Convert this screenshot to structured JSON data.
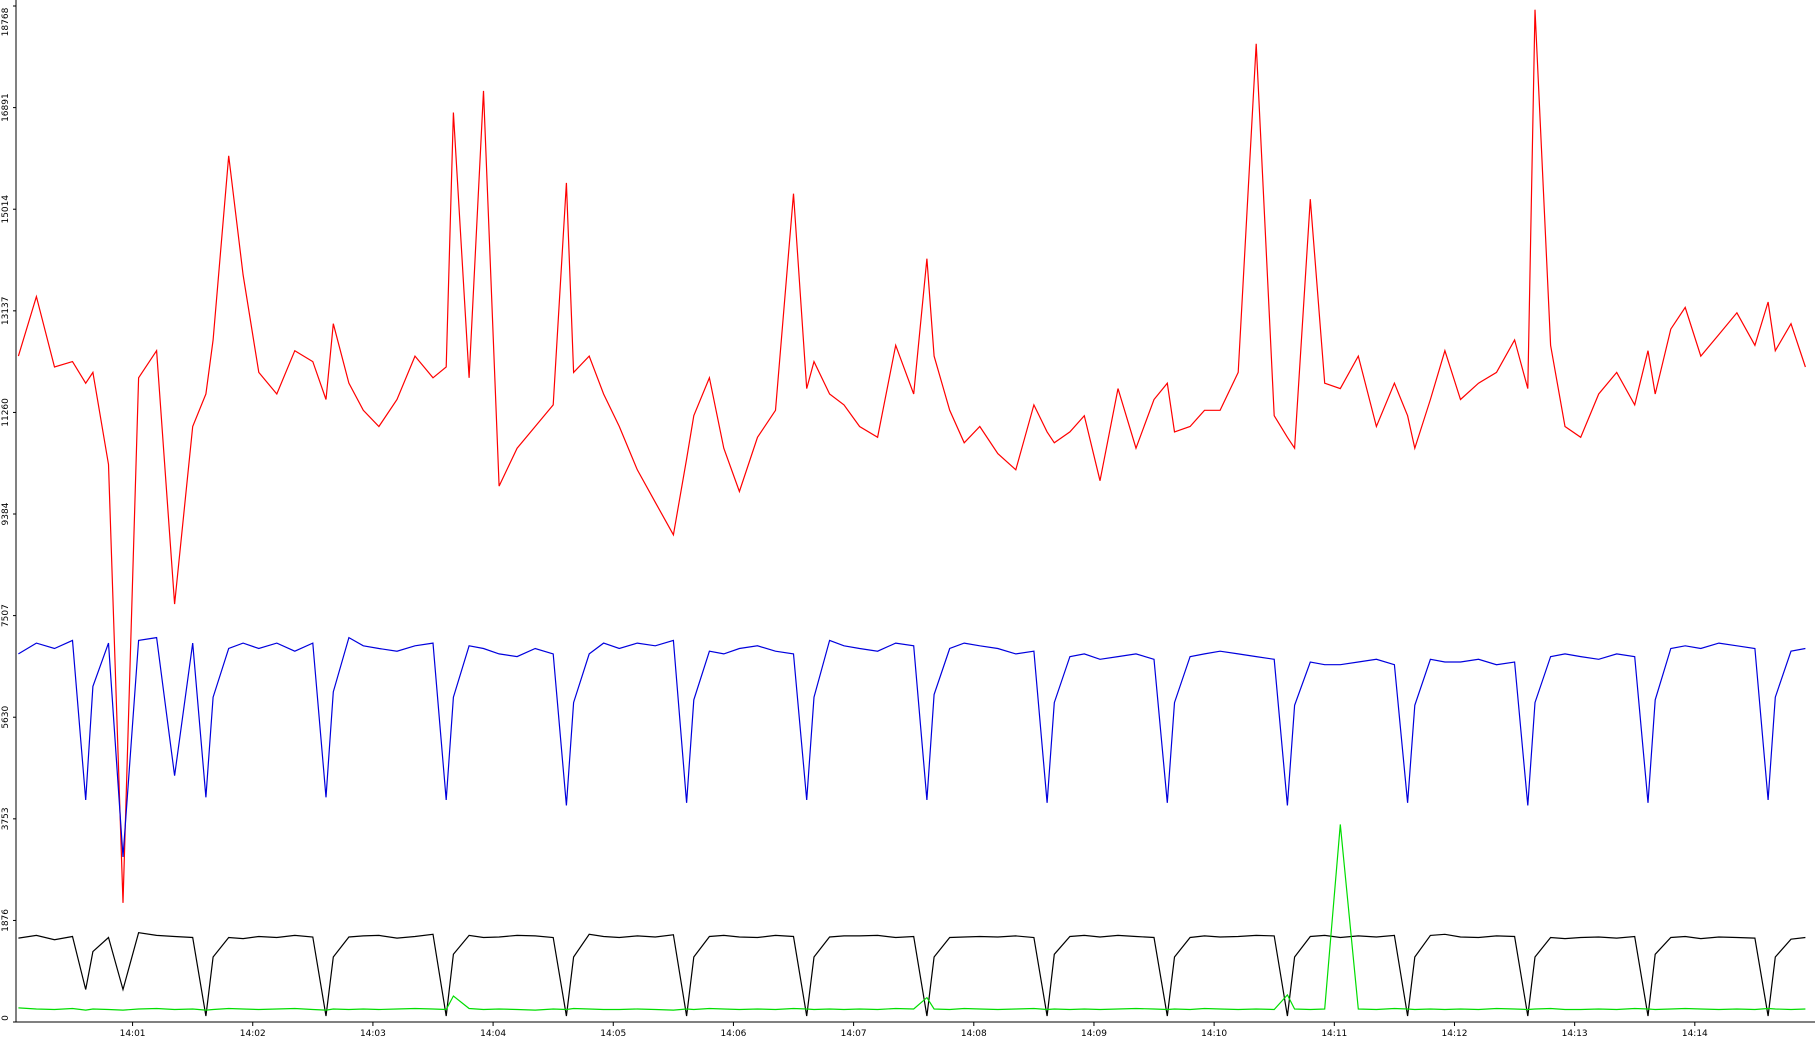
{
  "chart_data": {
    "type": "line",
    "x": [
      0.05,
      0.2,
      0.35,
      0.5,
      0.61,
      0.67,
      0.8,
      0.92,
      1.05,
      1.2,
      1.35,
      1.5,
      1.61,
      1.67,
      1.8,
      1.92,
      2.05,
      2.2,
      2.35,
      2.5,
      2.61,
      2.67,
      2.8,
      2.92,
      3.05,
      3.2,
      3.35,
      3.5,
      3.61,
      3.67,
      3.8,
      3.92,
      4.05,
      4.2,
      4.35,
      4.5,
      4.61,
      4.67,
      4.8,
      4.92,
      5.05,
      5.2,
      5.35,
      5.5,
      5.61,
      5.67,
      5.8,
      5.92,
      6.05,
      6.2,
      6.35,
      6.5,
      6.61,
      6.67,
      6.8,
      6.92,
      7.05,
      7.2,
      7.35,
      7.5,
      7.61,
      7.67,
      7.8,
      7.92,
      8.05,
      8.2,
      8.35,
      8.5,
      8.61,
      8.67,
      8.8,
      8.92,
      9.05,
      9.2,
      9.35,
      9.5,
      9.61,
      9.67,
      9.8,
      9.92,
      10.05,
      10.2,
      10.35,
      10.5,
      10.61,
      10.67,
      10.8,
      10.92,
      11.05,
      11.2,
      11.35,
      11.5,
      11.61,
      11.67,
      11.8,
      11.92,
      12.05,
      12.2,
      12.35,
      12.5,
      12.61,
      12.67,
      12.8,
      12.92,
      13.05,
      13.2,
      13.35,
      13.5,
      13.61,
      13.67,
      13.8,
      13.92,
      14.05,
      14.2,
      14.35,
      14.5,
      14.61,
      14.67,
      14.8,
      14.92
    ],
    "series": [
      {
        "color": "#ff0000",
        "values": [
          12300,
          13400,
          12100,
          12200,
          11800,
          12000,
          10300,
          2200,
          11900,
          12400,
          7720,
          11000,
          11600,
          12600,
          16000,
          13800,
          12000,
          11600,
          12400,
          12200,
          11500,
          12900,
          11800,
          11300,
          11000,
          11500,
          12300,
          11900,
          12100,
          16800,
          11900,
          17200,
          9900,
          10600,
          11000,
          11400,
          15500,
          12000,
          12300,
          11600,
          11000,
          10200,
          9600,
          9000,
          10400,
          11200,
          11900,
          10600,
          9800,
          10800,
          11300,
          15300,
          11700,
          12200,
          11600,
          11400,
          11000,
          10800,
          12500,
          11600,
          14100,
          12300,
          11300,
          10700,
          11000,
          10500,
          10200,
          11400,
          10900,
          10700,
          10900,
          11200,
          10000,
          11700,
          10600,
          11500,
          11800,
          10900,
          11000,
          11300,
          11300,
          12000,
          18070,
          11200,
          10800,
          10600,
          15200,
          11800,
          11700,
          12300,
          11000,
          11800,
          11200,
          10600,
          11500,
          12400,
          11500,
          11800,
          12000,
          12600,
          11700,
          18700,
          12500,
          11000,
          10800,
          11600,
          12000,
          11400,
          12400,
          11600,
          12800,
          13200,
          12300,
          12700,
          13100,
          12500,
          13300,
          12400,
          12900,
          12100
        ]
      },
      {
        "color": "#0000dd",
        "values": [
          6800,
          7000,
          6900,
          7050,
          4100,
          6200,
          7000,
          3050,
          7050,
          7100,
          4550,
          7000,
          4150,
          6000,
          6900,
          7000,
          6900,
          7000,
          6850,
          7000,
          4150,
          6100,
          7100,
          6950,
          6900,
          6850,
          6950,
          7000,
          4100,
          6000,
          6950,
          6900,
          6800,
          6750,
          6900,
          6800,
          4000,
          5900,
          6800,
          7000,
          6900,
          7000,
          6950,
          7050,
          4050,
          5950,
          6850,
          6800,
          6900,
          6950,
          6850,
          6800,
          4100,
          6000,
          7050,
          6950,
          6900,
          6850,
          7000,
          6950,
          4100,
          6050,
          6900,
          7000,
          6950,
          6900,
          6800,
          6850,
          4050,
          5900,
          6750,
          6800,
          6700,
          6750,
          6800,
          6700,
          4050,
          5900,
          6750,
          6800,
          6850,
          6800,
          6750,
          6700,
          4000,
          5850,
          6650,
          6600,
          6600,
          6650,
          6700,
          6600,
          4050,
          5850,
          6700,
          6650,
          6650,
          6700,
          6600,
          6650,
          4000,
          5900,
          6750,
          6800,
          6750,
          6700,
          6800,
          6750,
          4050,
          5950,
          6900,
          6950,
          6900,
          7000,
          6950,
          6900,
          4100,
          6000,
          6850,
          6900
        ]
      },
      {
        "color": "#000000",
        "values": [
          1550,
          1600,
          1520,
          1580,
          600,
          1300,
          1560,
          600,
          1650,
          1600,
          1580,
          1560,
          110,
          1200,
          1560,
          1540,
          1580,
          1560,
          1600,
          1570,
          110,
          1200,
          1570,
          1590,
          1600,
          1550,
          1580,
          1620,
          110,
          1250,
          1600,
          1560,
          1570,
          1600,
          1590,
          1560,
          110,
          1200,
          1620,
          1580,
          1560,
          1590,
          1570,
          1610,
          110,
          1200,
          1580,
          1600,
          1570,
          1560,
          1600,
          1580,
          110,
          1200,
          1570,
          1590,
          1590,
          1600,
          1560,
          1580,
          110,
          1200,
          1560,
          1570,
          1580,
          1570,
          1590,
          1560,
          110,
          1250,
          1580,
          1600,
          1570,
          1600,
          1580,
          1560,
          110,
          1200,
          1560,
          1590,
          1570,
          1580,
          1600,
          1590,
          110,
          1200,
          1580,
          1600,
          1560,
          1590,
          1570,
          1600,
          110,
          1200,
          1600,
          1620,
          1570,
          1560,
          1590,
          1580,
          110,
          1200,
          1560,
          1540,
          1560,
          1570,
          1550,
          1580,
          110,
          1250,
          1560,
          1580,
          1540,
          1570,
          1560,
          1550,
          110,
          1200,
          1530,
          1560
        ]
      },
      {
        "color": "#00dd00",
        "values": [
          260,
          240,
          230,
          250,
          220,
          240,
          230,
          220,
          240,
          250,
          230,
          240,
          220,
          230,
          250,
          240,
          230,
          240,
          250,
          230,
          220,
          240,
          230,
          240,
          230,
          240,
          250,
          240,
          230,
          480,
          250,
          230,
          240,
          230,
          220,
          240,
          230,
          250,
          240,
          230,
          230,
          240,
          230,
          220,
          240,
          230,
          250,
          240,
          230,
          240,
          230,
          250,
          240,
          230,
          240,
          230,
          240,
          230,
          250,
          240,
          450,
          240,
          230,
          250,
          240,
          230,
          240,
          250,
          230,
          240,
          230,
          240,
          230,
          240,
          250,
          240,
          230,
          240,
          230,
          250,
          240,
          230,
          240,
          230,
          500,
          240,
          230,
          240,
          3650,
          240,
          230,
          250,
          240,
          230,
          240,
          230,
          240,
          230,
          250,
          240,
          230,
          240,
          250,
          230,
          230,
          240,
          230,
          250,
          240,
          230,
          240,
          250,
          240,
          230,
          240,
          230,
          250,
          240,
          230,
          240
        ]
      }
    ],
    "xlim": [
      0.03,
      15
    ],
    "xticks": [
      {
        "value": 1,
        "label": "14:01"
      },
      {
        "value": 2,
        "label": "14:02"
      },
      {
        "value": 3,
        "label": "14:03"
      },
      {
        "value": 4,
        "label": "14:04"
      },
      {
        "value": 5,
        "label": "14:05"
      },
      {
        "value": 6,
        "label": "14:06"
      },
      {
        "value": 7,
        "label": "14:07"
      },
      {
        "value": 8,
        "label": "14:08"
      },
      {
        "value": 9,
        "label": "14:09"
      },
      {
        "value": 10,
        "label": "14:10"
      },
      {
        "value": 11,
        "label": "14:11"
      },
      {
        "value": 12,
        "label": "14:12"
      },
      {
        "value": 13,
        "label": "14:13"
      },
      {
        "value": 14,
        "label": "14:14"
      }
    ],
    "ylim": [
      0,
      18768
    ],
    "yticks": [
      0,
      1876,
      3753,
      5630,
      7507,
      9384,
      11260,
      13137,
      15014,
      16891,
      18768
    ]
  }
}
